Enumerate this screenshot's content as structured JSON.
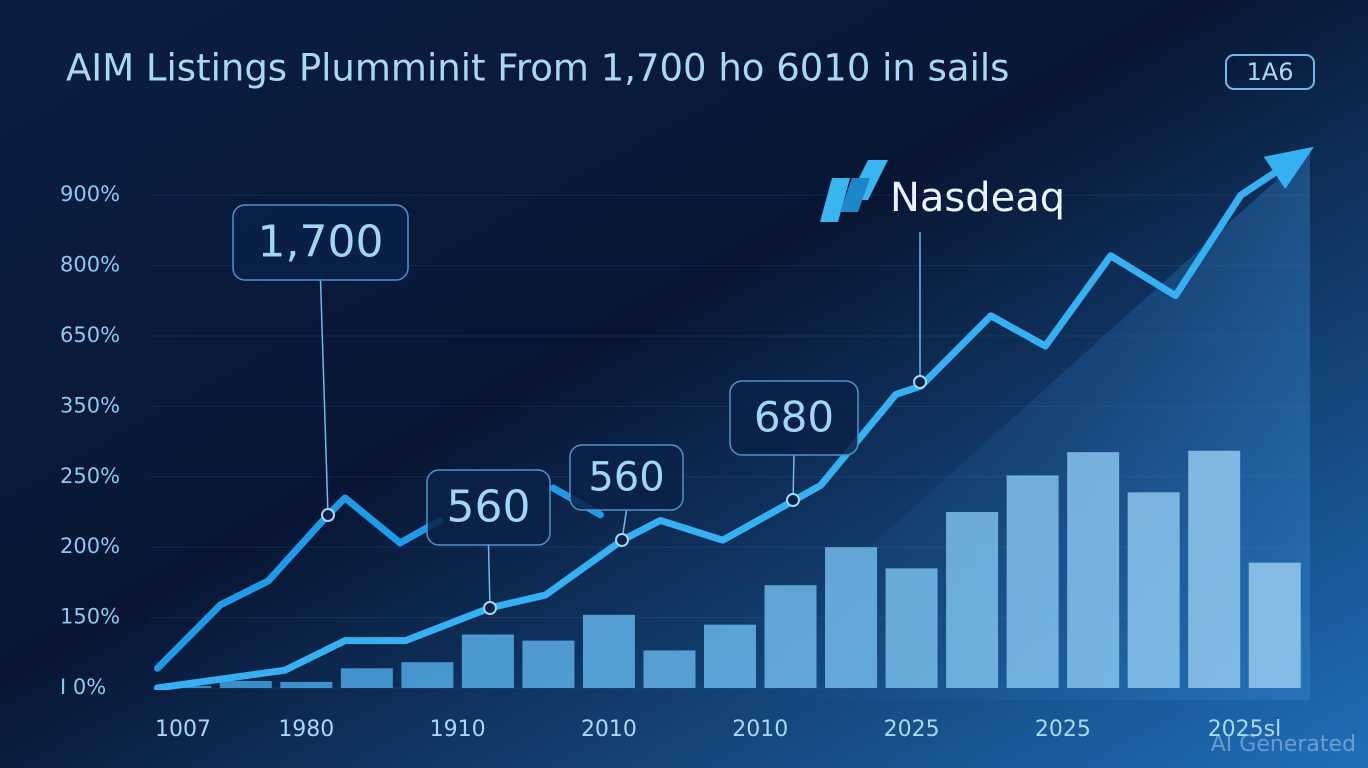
{
  "chart_data": {
    "type": "bar-line",
    "title": "AIM Listings Plumminit From 1,700 ho 6010 in sails",
    "badge": "1A6",
    "logo": "Nasdeaq",
    "watermark": "AI Generated",
    "x": [
      0,
      1,
      2,
      3,
      4,
      5,
      6,
      7,
      8,
      9,
      10,
      11,
      12,
      13,
      14,
      15,
      16,
      17,
      18
    ],
    "xlim": [
      -0.5,
      18.5
    ],
    "xticks": [
      {
        "value": -0.5,
        "label": "1007"
      },
      {
        "value": 2,
        "label": "1980"
      },
      {
        "value": 4.5,
        "label": "1910"
      },
      {
        "value": 7,
        "label": "2010"
      },
      {
        "value": 9.5,
        "label": "2010"
      },
      {
        "value": 12,
        "label": "2025"
      },
      {
        "value": 14.5,
        "label": "2025"
      },
      {
        "value": 17.5,
        "label": "2025sl"
      }
    ],
    "ylim": [
      0,
      964
    ],
    "yticks": [
      {
        "value": 0,
        "label": "I 0%"
      },
      {
        "value": 150,
        "label": "150%"
      },
      {
        "value": 200,
        "label": "200%"
      },
      {
        "value": 250,
        "label": "250%"
      },
      {
        "value": 350,
        "label": "350%"
      },
      {
        "value": 650,
        "label": "650%"
      },
      {
        "value": 800,
        "label": "800%"
      },
      {
        "value": 900,
        "label": "900%"
      }
    ],
    "grid": true,
    "bars": {
      "color": "#3d9fe0",
      "values": [
        4,
        15,
        13,
        42,
        55,
        114,
        101,
        152,
        80,
        135,
        173,
        200,
        185,
        225,
        252,
        285,
        239,
        287,
        189
      ]
    },
    "lines": [
      {
        "color": "#1e9be8",
        "x": [
          -0.46,
          0.58,
          1.37,
          2.36,
          2.64,
          3.55,
          4.21,
          5,
          6.08,
          6.45,
          6.86
        ],
        "values": [
          42,
          159,
          176,
          223,
          235,
          203,
          219,
          null,
          242,
          233,
          223
        ]
      },
      {
        "color": "#35b0f2",
        "x": [
          -0.46,
          1.65,
          2.64,
          3.64,
          5.04,
          5.95,
          7.22,
          7.85,
          8.88,
          10.05,
          10.5,
          11.74,
          12.15,
          13.31,
          14.21,
          15.29,
          16.36,
          17.44,
          18.51
        ],
        "values": [
          0,
          38,
          101,
          101,
          157,
          166,
          205,
          219,
          205,
          233,
          244,
          401,
          436,
          693,
          607,
          814,
          736,
          900,
          961
        ]
      }
    ],
    "annotations": [
      "1,700",
      "560",
      "560",
      "680"
    ]
  }
}
